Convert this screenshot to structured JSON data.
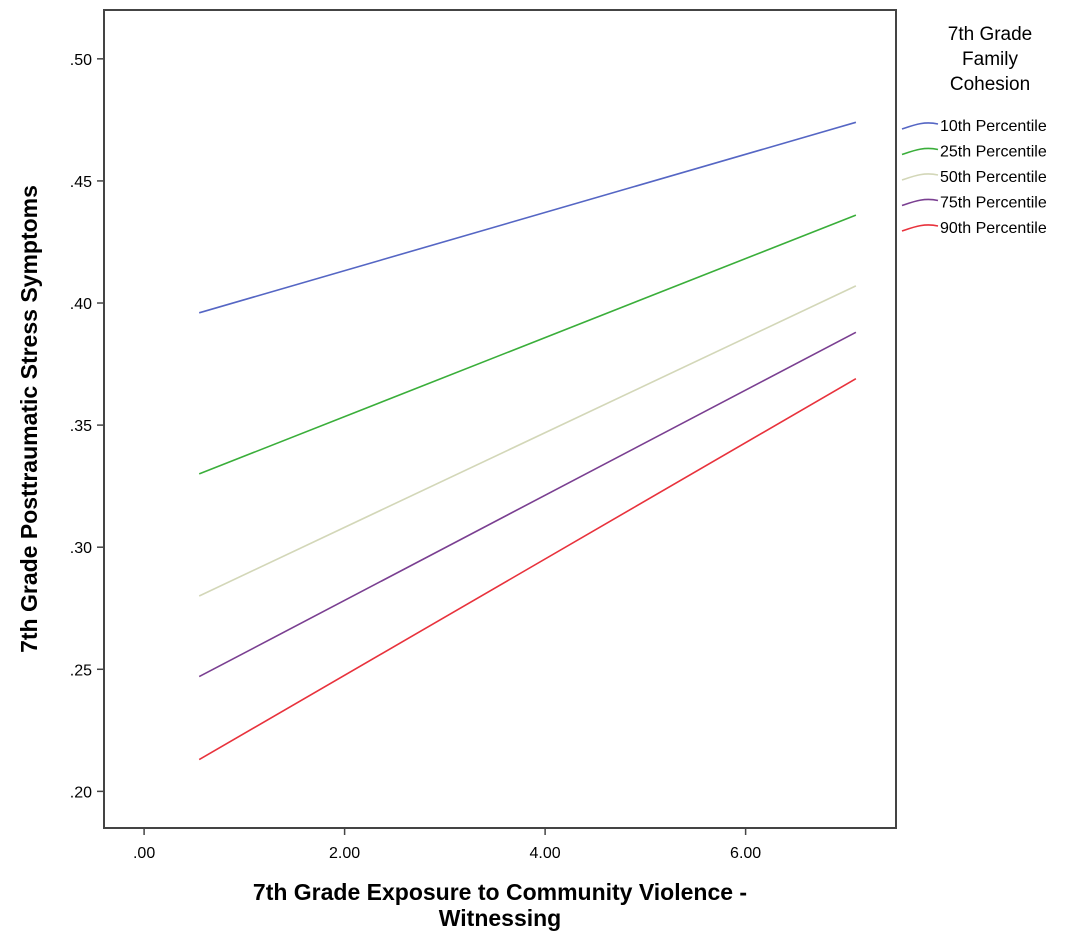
{
  "chart_data": {
    "type": "line",
    "xlabel": [
      "7th Grade Exposure to Community Violence -",
      "Witnessing"
    ],
    "ylabel": "7th Grade Posttraumatic Stress Symptoms",
    "xlim": [
      -0.4,
      7.5
    ],
    "ylim": [
      0.185,
      0.52
    ],
    "x_ticks": [
      0,
      2,
      4,
      6
    ],
    "x_tick_labels": [
      ".00",
      "2.00",
      "4.00",
      "6.00"
    ],
    "y_ticks": [
      0.2,
      0.25,
      0.3,
      0.35,
      0.4,
      0.45,
      0.5
    ],
    "y_tick_labels": [
      ".20",
      ".25",
      ".30",
      ".35",
      ".40",
      ".45",
      ".50"
    ],
    "grid": false,
    "legend": {
      "title": [
        "7th Grade",
        "Family",
        "Cohesion"
      ],
      "placement": "right"
    },
    "series": [
      {
        "name": "10th Percentile",
        "color": "#5566c4",
        "x": [
          0.55,
          7.1
        ],
        "y": [
          0.396,
          0.474
        ]
      },
      {
        "name": "25th Percentile",
        "color": "#3aae3a",
        "x": [
          0.55,
          7.1
        ],
        "y": [
          0.33,
          0.436
        ]
      },
      {
        "name": "50th Percentile",
        "color": "#d3d7b8",
        "x": [
          0.55,
          7.1
        ],
        "y": [
          0.28,
          0.407
        ]
      },
      {
        "name": "75th Percentile",
        "color": "#7a3f91",
        "x": [
          0.55,
          7.1
        ],
        "y": [
          0.247,
          0.388
        ]
      },
      {
        "name": "90th Percentile",
        "color": "#e8323c",
        "x": [
          0.55,
          7.1
        ],
        "y": [
          0.213,
          0.369
        ]
      }
    ]
  }
}
